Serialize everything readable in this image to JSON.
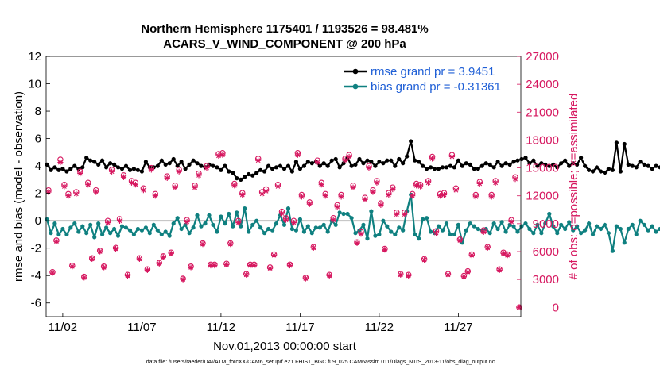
{
  "chart_data": {
    "type": "line",
    "title": "Northern Hemisphere 1175401 / 1193526 = 98.481%",
    "subtitle": "ACARS_V_WIND_COMPONENT @ 200 hPa",
    "xlabel": "Nov.01,2013 00:00:00 start",
    "ylabel": "rmse and bias (model - observation)",
    "ylabel_right": "# of obs: o=possible; ×=assimilated",
    "footer": "data file: /Users/raeder/DAI/ATM_forcXX/CAM6_setup/f.e21.FHIST_BGC.f09_025.CAM6assim.011/Diags_NTrS_2013-11/obs_diag_output.nc",
    "x_ticks": [
      "11/02",
      "11/07",
      "11/12",
      "11/17",
      "11/22",
      "11/27"
    ],
    "x_tick_days": [
      2,
      7,
      12,
      17,
      22,
      27
    ],
    "xlim": [
      0.95,
      30.95
    ],
    "ylim": [
      -7,
      12
    ],
    "y_ticks": [
      -6,
      -4,
      -2,
      0,
      2,
      4,
      6,
      8,
      10,
      12
    ],
    "ylim_right": [
      -1000,
      27000
    ],
    "y_ticks_right": [
      0,
      3000,
      6000,
      9000,
      12000,
      15000,
      18000,
      21000,
      24000,
      27000
    ],
    "grid": false,
    "legend_position": "top-right",
    "colors": {
      "rmse": "#000000",
      "bias": "#0f8080",
      "obs": "#d6175f",
      "legend_text": "#1f5fd6",
      "zero_line": "#bfbfbf"
    },
    "series": [
      {
        "name": "rmse grand pr = 3.9451",
        "axis": "left",
        "x_start_day": 1.0,
        "x_step_days": 0.25,
        "values": [
          4.1,
          3.7,
          3.9,
          3.7,
          3.8,
          3.6,
          3.8,
          4.0,
          3.8,
          3.9,
          4.6,
          4.4,
          4.3,
          4.1,
          4.4,
          3.9,
          4.2,
          4.1,
          3.9,
          3.8,
          4.0,
          3.7,
          3.8,
          3.7,
          3.6,
          4.3,
          3.9,
          3.9,
          4.0,
          4.4,
          4.1,
          4.2,
          4.5,
          4.0,
          4.3,
          3.8,
          4.1,
          4.4,
          4.2,
          4.0,
          3.9,
          4.1,
          4.0,
          3.9,
          3.7,
          4.0,
          3.6,
          3.5,
          3.1,
          3.0,
          3.2,
          3.4,
          3.3,
          3.5,
          3.7,
          3.6,
          4.0,
          3.8,
          3.9,
          4.0,
          3.8,
          4.0,
          3.6,
          4.3,
          3.8,
          4.0,
          4.3,
          4.2,
          4.3,
          4.0,
          4.2,
          4.0,
          4.4,
          4.5,
          3.9,
          4.2,
          4.6,
          4.0,
          4.1,
          4.5,
          4.2,
          4.4,
          4.3,
          4.0,
          4.3,
          4.2,
          4.4,
          4.4,
          4.0,
          4.5,
          4.2,
          4.7,
          5.8,
          4.4,
          4.3,
          4.0,
          3.8,
          3.9,
          3.8,
          3.8,
          3.9,
          3.9,
          4.0,
          3.9,
          4.4,
          4.0,
          4.2,
          4.1,
          3.8,
          3.8,
          4.0,
          4.2,
          4.1,
          3.9,
          4.3,
          4.0,
          4.2,
          4.1,
          4.3,
          4.4,
          4.5,
          4.6,
          4.2,
          4.4,
          4.0,
          4.2,
          4.1,
          4.0,
          4.1,
          3.9,
          4.2,
          4.4,
          4.0,
          4.2,
          4.1,
          4.6,
          4.0,
          3.7,
          3.6,
          3.9,
          3.6,
          3.5,
          3.8,
          3.7,
          5.7,
          3.6,
          5.6,
          4.1,
          4.0,
          3.9,
          4.3,
          4.1,
          4.0,
          3.8,
          4.0,
          3.9,
          4.1,
          3.8,
          3.6,
          3.9,
          3.8,
          4.0,
          3.7,
          3.6,
          3.7,
          3.9,
          4.0,
          3.8,
          3.6,
          3.5,
          3.7,
          3.8,
          3.5,
          3.6,
          3.7,
          4.1
        ]
      },
      {
        "name": "bias grand pr = -0.31361",
        "axis": "left",
        "x_start_day": 1.0,
        "x_step_days": 0.25,
        "values": [
          0.1,
          -0.9,
          -0.2,
          -1.0,
          -0.6,
          -1.0,
          -0.5,
          -0.2,
          -0.8,
          -0.4,
          -0.9,
          -0.3,
          -1.2,
          -0.2,
          -1.0,
          -0.5,
          -0.9,
          -0.6,
          -1.1,
          -0.4,
          -0.5,
          -0.7,
          -1.0,
          -0.6,
          -0.7,
          -0.5,
          -0.9,
          -0.3,
          -0.7,
          -1.0,
          -0.8,
          -1.1,
          -0.2,
          0.2,
          -0.6,
          -0.3,
          -0.9,
          -0.5,
          0.4,
          -0.4,
          -0.2,
          0.4,
          -0.3,
          -0.8,
          0.3,
          -0.2,
          0.5,
          -0.4,
          0.6,
          -0.4,
          0.9,
          -0.8,
          -0.3,
          0.0,
          -0.5,
          -0.9,
          -0.6,
          -0.7,
          -0.2,
          0.4,
          -0.3,
          0.9,
          -0.6,
          -0.7,
          0.1,
          -0.8,
          -0.4,
          -0.9,
          -0.5,
          -0.5,
          -0.3,
          -0.8,
          0.0,
          -0.3,
          0.6,
          0.5,
          0.5,
          0.2,
          -0.9,
          -0.7,
          -0.3,
          -1.3,
          0.7,
          -1.1,
          -1.0,
          0.0,
          -0.4,
          -0.8,
          -1.0,
          -0.5,
          -0.7,
          0.7,
          1.9,
          -1.0,
          -1.3,
          0.1,
          0.2,
          -0.8,
          -0.9,
          -0.4,
          -0.7,
          -0.2,
          -1.0,
          -1.0,
          -0.3,
          -1.6,
          -0.7,
          -0.2,
          -0.4,
          -0.6,
          -0.7,
          -0.6,
          -0.9,
          -0.2,
          -0.6,
          -0.1,
          -0.8,
          -0.3,
          -0.4,
          -0.8,
          -0.4,
          -0.2,
          -0.6,
          -0.9,
          -0.3,
          -0.9,
          -0.2,
          0.5,
          -0.4,
          -0.9,
          -0.3,
          -0.6,
          -0.1,
          -0.7,
          -0.4,
          -0.9,
          -0.7,
          -0.2,
          -1.0,
          -0.4,
          -0.6,
          -0.3,
          -0.9,
          -2.2,
          -0.4,
          -0.6,
          -1.6,
          -0.6,
          -0.3,
          -1.0,
          0.0,
          -0.3,
          -0.7,
          -0.4,
          -0.8,
          -0.6,
          -1.0,
          -0.4,
          -0.1,
          -0.3,
          -0.6,
          -0.2,
          -0.4,
          -0.6,
          0.5,
          -0.4,
          -0.8,
          -0.5,
          -0.7,
          -0.2,
          -0.6,
          -0.8,
          0.6,
          -0.9
        ]
      },
      {
        "name": "obs possible",
        "axis": "right",
        "marker": "circle",
        "x_days": [
          1.1,
          1.35,
          1.6,
          1.85,
          2.1,
          2.35,
          2.6,
          2.85,
          3.1,
          3.35,
          3.6,
          3.85,
          4.1,
          4.35,
          4.6,
          4.85,
          5.1,
          5.35,
          5.6,
          5.85,
          6.1,
          6.35,
          6.6,
          6.85,
          7.1,
          7.35,
          7.6,
          7.85,
          8.1,
          8.35,
          8.6,
          8.85,
          9.1,
          9.35,
          9.6,
          9.85,
          10.1,
          10.35,
          10.6,
          10.85,
          11.1,
          11.35,
          11.6,
          11.85,
          12.1,
          12.35,
          12.6,
          12.85,
          13.1,
          13.35,
          13.6,
          13.85,
          14.1,
          14.35,
          14.6,
          14.85,
          15.1,
          15.35,
          15.6,
          15.85,
          16.1,
          16.35,
          16.6,
          16.85,
          17.1,
          17.35,
          17.6,
          17.85,
          18.1,
          18.35,
          18.6,
          18.85,
          19.1,
          19.35,
          19.6,
          19.85,
          20.1,
          20.35,
          20.6,
          20.85,
          21.1,
          21.35,
          21.6,
          21.85,
          22.1,
          22.35,
          22.6,
          22.85,
          23.1,
          23.35,
          23.6,
          23.85,
          24.1,
          24.35,
          24.6,
          24.85,
          25.1,
          25.35,
          25.6,
          25.85,
          26.1,
          26.35,
          26.6,
          26.85,
          27.1,
          27.35,
          27.6,
          27.85,
          28.1,
          28.35,
          28.6,
          28.85,
          29.1,
          29.35,
          29.6,
          29.85,
          30.1,
          30.35,
          30.6,
          30.85
        ],
        "values": [
          12600,
          3800,
          7200,
          15900,
          13200,
          12200,
          4500,
          12400,
          14600,
          3300,
          13400,
          5300,
          12600,
          6100,
          4400,
          9300,
          14800,
          6400,
          9500,
          14200,
          3500,
          13600,
          13400,
          5300,
          12800,
          4100,
          15000,
          12200,
          4800,
          5500,
          14100,
          5900,
          13100,
          14800,
          3100,
          9400,
          4400,
          13100,
          14400,
          6900,
          15200,
          4600,
          4600,
          16500,
          16600,
          4700,
          6900,
          13300,
          9300,
          12300,
          3600,
          4600,
          4600,
          16000,
          12400,
          12700,
          4300,
          5700,
          13200,
          10300,
          9600,
          4600,
          9300,
          16600,
          12100,
          3200,
          11300,
          6500,
          15800,
          13400,
          12200,
          3500,
          9600,
          11000,
          12100,
          16000,
          16400,
          13100,
          7000,
          8100,
          11800,
          15200,
          12600,
          13600,
          11200,
          6300,
          12300,
          12900,
          10200,
          3600,
          10200,
          3500,
          12200,
          13300,
          13200,
          5200,
          13600,
          16200,
          8200,
          12200,
          12300,
          3600,
          16400,
          12800,
          7300,
          3400,
          3900,
          5700,
          12100,
          13500,
          8300,
          6500,
          12100,
          13600,
          4100,
          5900,
          5700,
          9400,
          14000,
          0
        ]
      },
      {
        "name": "obs assimilated",
        "axis": "right",
        "marker": "asterisk",
        "x_days": [
          1.1,
          1.35,
          1.6,
          1.85,
          2.1,
          2.35,
          2.6,
          2.85,
          3.1,
          3.35,
          3.6,
          3.85,
          4.1,
          4.35,
          4.6,
          4.85,
          5.1,
          5.35,
          5.6,
          5.85,
          6.1,
          6.35,
          6.6,
          6.85,
          7.1,
          7.35,
          7.6,
          7.85,
          8.1,
          8.35,
          8.6,
          8.85,
          9.1,
          9.35,
          9.6,
          9.85,
          10.1,
          10.35,
          10.6,
          10.85,
          11.1,
          11.35,
          11.6,
          11.85,
          12.1,
          12.35,
          12.6,
          12.85,
          13.1,
          13.35,
          13.6,
          13.85,
          14.1,
          14.35,
          14.6,
          14.85,
          15.1,
          15.35,
          15.6,
          15.85,
          16.1,
          16.35,
          16.6,
          16.85,
          17.1,
          17.35,
          17.6,
          17.85,
          18.1,
          18.35,
          18.6,
          18.85,
          19.1,
          19.35,
          19.6,
          19.85,
          20.1,
          20.35,
          20.6,
          20.85,
          21.1,
          21.35,
          21.6,
          21.85,
          22.1,
          22.35,
          22.6,
          22.85,
          23.1,
          23.35,
          23.6,
          23.85,
          24.1,
          24.35,
          24.6,
          24.85,
          25.1,
          25.35,
          25.6,
          25.85,
          26.1,
          26.35,
          26.6,
          26.85,
          27.1,
          27.35,
          27.6,
          27.85,
          28.1,
          28.35,
          28.6,
          28.85,
          29.1,
          29.35,
          29.6,
          29.85,
          30.1,
          30.35,
          30.6,
          30.85
        ],
        "values": [
          12400,
          3700,
          7100,
          15600,
          13000,
          12000,
          4400,
          12200,
          14400,
          3200,
          13200,
          5200,
          12400,
          6000,
          4300,
          9100,
          14600,
          6300,
          9300,
          14000,
          3400,
          13400,
          13200,
          5200,
          12600,
          4000,
          14800,
          12000,
          4700,
          5400,
          13900,
          5800,
          12900,
          14600,
          3000,
          9200,
          4300,
          12900,
          14200,
          6800,
          15000,
          4500,
          4500,
          16300,
          16400,
          4600,
          6800,
          13100,
          9100,
          12100,
          3500,
          4500,
          4500,
          15800,
          12200,
          12500,
          4200,
          5600,
          13000,
          10100,
          9400,
          4500,
          9100,
          16400,
          11900,
          3100,
          11100,
          6400,
          15600,
          13200,
          12000,
          3400,
          9400,
          10800,
          11900,
          15800,
          16200,
          12900,
          6900,
          7900,
          11600,
          15000,
          12400,
          13400,
          11000,
          6200,
          12100,
          12700,
          10000,
          3500,
          10000,
          3400,
          12000,
          13100,
          13000,
          5100,
          13400,
          16000,
          8000,
          12000,
          12100,
          3500,
          16200,
          12600,
          7200,
          3300,
          3800,
          5600,
          11900,
          13300,
          8100,
          6400,
          11900,
          13400,
          4000,
          5800,
          5600,
          9200,
          13800,
          0
        ]
      }
    ]
  }
}
